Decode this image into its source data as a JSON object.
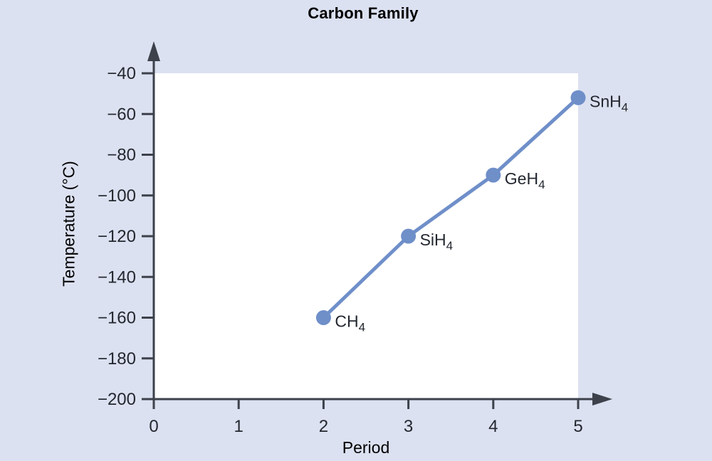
{
  "chart_data": {
    "type": "line",
    "title": "Carbon Family",
    "xlabel": "Period",
    "ylabel": "Temperature (°C)",
    "xlim": [
      0,
      5
    ],
    "ylim": [
      -200,
      -40
    ],
    "x_ticks": [
      0,
      1,
      2,
      3,
      4,
      5
    ],
    "y_ticks": [
      -40,
      -60,
      -80,
      -100,
      -120,
      -140,
      -160,
      -180,
      -200
    ],
    "grid": false,
    "legend_position": "none",
    "series": [
      {
        "color": "#6f8fc9",
        "points": [
          {
            "x": 2,
            "y": -160,
            "label_main": "CH",
            "label_sub": "4"
          },
          {
            "x": 3,
            "y": -120,
            "label_main": "SiH",
            "label_sub": "4"
          },
          {
            "x": 4,
            "y": -90,
            "label_main": "GeH",
            "label_sub": "4"
          },
          {
            "x": 5,
            "y": -52,
            "label_main": "SnH",
            "label_sub": "4"
          }
        ]
      }
    ],
    "colors": {
      "background": "#dce1f1",
      "plot_background": "#ffffff",
      "axis": "#3c414b",
      "text": "#23272f",
      "line": "#6f8fc9"
    }
  }
}
